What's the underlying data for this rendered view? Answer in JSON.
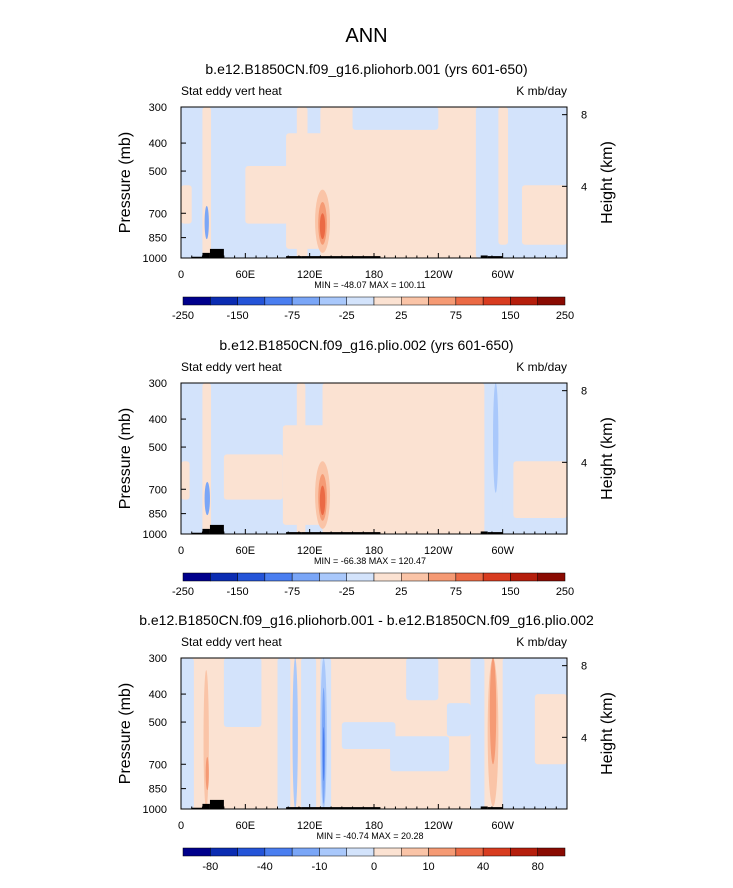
{
  "figure_title": "ANN",
  "chart_data": [
    {
      "type": "heatmap",
      "title": "b.e12.B1850CN.f09_g16.pliohorb.001 (yrs 601-650)",
      "variable_label": "Stat eddy vert heat",
      "units_label": "K mb/day",
      "ylabel": "Pressure (mb)",
      "ylabel_right": "Height (km)",
      "yticks": [
        "300",
        "400",
        "500",
        "700",
        "850",
        "1000"
      ],
      "yticks_right": [
        "8",
        "4"
      ],
      "xticks": [
        "0",
        "60E",
        "120E",
        "180",
        "120W",
        "60W"
      ],
      "stats": "MIN = -48.07   MAX = 100.11",
      "colorbar_labels": [
        "-250",
        "-150",
        "-75",
        "-25",
        "25",
        "75",
        "150",
        "250"
      ],
      "colorbar_colors": [
        "#00008c",
        "#0b2cb2",
        "#2454d8",
        "#4a7ef0",
        "#7aa6f7",
        "#a9c8fb",
        "#d3e3fb",
        "#fbe2d2",
        "#fac4a7",
        "#f59a74",
        "#eb6a45",
        "#d83c20",
        "#b51e0c",
        "#8a0b02"
      ],
      "land_bars": [
        [
          10,
          20,
          990
        ],
        [
          20,
          27,
          960
        ],
        [
          27,
          40,
          930
        ],
        [
          98,
          112,
          985
        ],
        [
          112,
          170,
          985
        ],
        [
          170,
          186,
          985
        ],
        [
          280,
          286,
          980
        ],
        [
          286,
          300,
          985
        ]
      ],
      "features": [
        {
          "kind": "bg",
          "fill": "#d3e3fb"
        },
        {
          "kind": "rect",
          "x": [
            20,
            28
          ],
          "p": [
            300,
            1000
          ],
          "fill": "#fbe2d2"
        },
        {
          "kind": "rect",
          "x": [
            60,
            100
          ],
          "p": [
            480,
            760
          ],
          "fill": "#fbe2d2"
        },
        {
          "kind": "rect",
          "x": [
            98,
            283
          ],
          "p": [
            370,
            930
          ],
          "fill": "#fbe2d2"
        },
        {
          "kind": "rect",
          "x": [
            108,
            118
          ],
          "p": [
            300,
            1000
          ],
          "fill": "#fbe2d2"
        },
        {
          "kind": "rect",
          "x": [
            130,
            283
          ],
          "p": [
            300,
            1000
          ],
          "fill": "#fbe2d2"
        },
        {
          "kind": "rect",
          "x": [
            160,
            240
          ],
          "p": [
            300,
            360
          ],
          "fill": "#d3e3fb"
        },
        {
          "kind": "rect",
          "x": [
            275,
            290
          ],
          "p": [
            300,
            1000
          ],
          "fill": "#d3e3fb"
        },
        {
          "kind": "rect",
          "x": [
            296,
            305
          ],
          "p": [
            300,
            900
          ],
          "fill": "#fbe2d2"
        },
        {
          "kind": "rect",
          "x": [
            318,
            360
          ],
          "p": [
            560,
            900
          ],
          "fill": "#fbe2d2"
        },
        {
          "kind": "rect",
          "x": [
            0,
            10
          ],
          "p": [
            560,
            760
          ],
          "fill": "#fbe2d2"
        },
        {
          "kind": "blob",
          "x": [
            22,
            26
          ],
          "p": [
            660,
            860
          ],
          "fill": "#7aa6f7"
        },
        {
          "kind": "blob",
          "x": [
            125,
            139
          ],
          "p": [
            580,
            960
          ],
          "fill": "#fac4a7"
        },
        {
          "kind": "blob",
          "x": [
            128,
            136
          ],
          "p": [
            640,
            900
          ],
          "fill": "#f59a74"
        },
        {
          "kind": "blob",
          "x": [
            129.5,
            134.5
          ],
          "p": [
            700,
            860
          ],
          "fill": "#eb6a45"
        }
      ]
    },
    {
      "type": "heatmap",
      "title": "b.e12.B1850CN.f09_g16.plio.002 (yrs 601-650)",
      "variable_label": "Stat eddy vert heat",
      "units_label": "K mb/day",
      "ylabel": "Pressure (mb)",
      "ylabel_right": "Height (km)",
      "yticks": [
        "300",
        "400",
        "500",
        "700",
        "850",
        "1000"
      ],
      "yticks_right": [
        "8",
        "4"
      ],
      "xticks": [
        "0",
        "60E",
        "120E",
        "180",
        "120W",
        "60W"
      ],
      "stats": "MIN = -66.38   MAX = 120.47",
      "colorbar_labels": [
        "-250",
        "-150",
        "-75",
        "-25",
        "25",
        "75",
        "150",
        "250"
      ],
      "colorbar_colors": [
        "#00008c",
        "#0b2cb2",
        "#2454d8",
        "#4a7ef0",
        "#7aa6f7",
        "#a9c8fb",
        "#d3e3fb",
        "#fbe2d2",
        "#fac4a7",
        "#f59a74",
        "#eb6a45",
        "#d83c20",
        "#b51e0c",
        "#8a0b02"
      ],
      "land_bars": [
        [
          10,
          20,
          990
        ],
        [
          20,
          27,
          960
        ],
        [
          27,
          40,
          930
        ],
        [
          98,
          112,
          985
        ],
        [
          112,
          170,
          985
        ],
        [
          170,
          186,
          985
        ],
        [
          280,
          286,
          980
        ],
        [
          286,
          300,
          985
        ]
      ],
      "features": [
        {
          "kind": "bg",
          "fill": "#d3e3fb"
        },
        {
          "kind": "rect",
          "x": [
            20,
            28
          ],
          "p": [
            300,
            1000
          ],
          "fill": "#fbe2d2"
        },
        {
          "kind": "rect",
          "x": [
            40,
            95
          ],
          "p": [
            530,
            760
          ],
          "fill": "#fbe2d2"
        },
        {
          "kind": "rect",
          "x": [
            95,
            283
          ],
          "p": [
            420,
            930
          ],
          "fill": "#fbe2d2"
        },
        {
          "kind": "rect",
          "x": [
            108,
            116
          ],
          "p": [
            300,
            1000
          ],
          "fill": "#fbe2d2"
        },
        {
          "kind": "rect",
          "x": [
            132,
            283
          ],
          "p": [
            300,
            1000
          ],
          "fill": "#fbe2d2"
        },
        {
          "kind": "rect",
          "x": [
            283,
            300
          ],
          "p": [
            300,
            1000
          ],
          "fill": "#d3e3fb"
        },
        {
          "kind": "rect",
          "x": [
            310,
            360
          ],
          "p": [
            560,
            880
          ],
          "fill": "#fbe2d2"
        },
        {
          "kind": "rect",
          "x": [
            0,
            8
          ],
          "p": [
            560,
            760
          ],
          "fill": "#fbe2d2"
        },
        {
          "kind": "blob",
          "x": [
            22,
            27
          ],
          "p": [
            660,
            860
          ],
          "fill": "#7aa6f7"
        },
        {
          "kind": "blob",
          "x": [
            291,
            296
          ],
          "p": [
            300,
            720
          ],
          "fill": "#a9c8fb"
        },
        {
          "kind": "blob",
          "x": [
            125,
            139
          ],
          "p": [
            560,
            960
          ],
          "fill": "#fac4a7"
        },
        {
          "kind": "blob",
          "x": [
            128,
            136
          ],
          "p": [
            620,
            900
          ],
          "fill": "#f59a74"
        },
        {
          "kind": "blob",
          "x": [
            129.5,
            134.5
          ],
          "p": [
            680,
            860
          ],
          "fill": "#eb6a45"
        }
      ]
    },
    {
      "type": "heatmap",
      "title": "b.e12.B1850CN.f09_g16.pliohorb.001 - b.e12.B1850CN.f09_g16.plio.002",
      "variable_label": "Stat eddy vert heat",
      "units_label": "K mb/day",
      "ylabel": "Pressure (mb)",
      "ylabel_right": "Height (km)",
      "yticks": [
        "300",
        "400",
        "500",
        "700",
        "850",
        "1000"
      ],
      "yticks_right": [
        "8",
        "4"
      ],
      "xticks": [
        "0",
        "60E",
        "120E",
        "180",
        "120W",
        "60W"
      ],
      "stats": "MIN = -40.74   MAX =  20.28",
      "colorbar_labels": [
        "-80",
        "-40",
        "-10",
        "0",
        "10",
        "40",
        "80"
      ],
      "colorbar_colors": [
        "#00008c",
        "#0b2cb2",
        "#2454d8",
        "#4a7ef0",
        "#7aa6f7",
        "#a9c8fb",
        "#d3e3fb",
        "#fbe2d2",
        "#fac4a7",
        "#f59a74",
        "#eb6a45",
        "#d83c20",
        "#b51e0c",
        "#8a0b02"
      ],
      "land_bars": [
        [
          10,
          20,
          990
        ],
        [
          20,
          27,
          960
        ],
        [
          27,
          40,
          930
        ],
        [
          98,
          112,
          985
        ],
        [
          112,
          170,
          985
        ],
        [
          170,
          186,
          985
        ],
        [
          280,
          286,
          980
        ],
        [
          286,
          300,
          985
        ]
      ],
      "features": [
        {
          "kind": "bg",
          "fill": "#fbe2d2"
        },
        {
          "kind": "rect",
          "x": [
            0,
            12
          ],
          "p": [
            300,
            1000
          ],
          "fill": "#d3e3fb"
        },
        {
          "kind": "rect",
          "x": [
            40,
            75
          ],
          "p": [
            300,
            520
          ],
          "fill": "#d3e3fb"
        },
        {
          "kind": "rect",
          "x": [
            90,
            102
          ],
          "p": [
            300,
            1000
          ],
          "fill": "#d3e3fb"
        },
        {
          "kind": "rect",
          "x": [
            112,
            126
          ],
          "p": [
            300,
            1000
          ],
          "fill": "#d3e3fb"
        },
        {
          "kind": "rect",
          "x": [
            130,
            140
          ],
          "p": [
            300,
            1000
          ],
          "fill": "#d3e3fb"
        },
        {
          "kind": "rect",
          "x": [
            150,
            200
          ],
          "p": [
            500,
            620
          ],
          "fill": "#d3e3fb"
        },
        {
          "kind": "rect",
          "x": [
            195,
            250
          ],
          "p": [
            560,
            740
          ],
          "fill": "#d3e3fb"
        },
        {
          "kind": "rect",
          "x": [
            210,
            240
          ],
          "p": [
            300,
            420
          ],
          "fill": "#d3e3fb"
        },
        {
          "kind": "rect",
          "x": [
            248,
            270
          ],
          "p": [
            430,
            560
          ],
          "fill": "#d3e3fb"
        },
        {
          "kind": "rect",
          "x": [
            270,
            283
          ],
          "p": [
            300,
            1000
          ],
          "fill": "#d3e3fb"
        },
        {
          "kind": "rect",
          "x": [
            300,
            360
          ],
          "p": [
            300,
            1000
          ],
          "fill": "#d3e3fb"
        },
        {
          "kind": "rect",
          "x": [
            330,
            360
          ],
          "p": [
            400,
            700
          ],
          "fill": "#fbe2d2"
        },
        {
          "kind": "blob",
          "x": [
            21,
            26
          ],
          "p": [
            330,
            1000
          ],
          "fill": "#fac4a7"
        },
        {
          "kind": "blob",
          "x": [
            23,
            26
          ],
          "p": [
            660,
            860
          ],
          "fill": "#f59a74"
        },
        {
          "kind": "blob",
          "x": [
            104,
            109
          ],
          "p": [
            300,
            1000
          ],
          "fill": "#a9c8fb"
        },
        {
          "kind": "blob",
          "x": [
            130,
            136
          ],
          "p": [
            300,
            1000
          ],
          "fill": "#a9c8fb"
        },
        {
          "kind": "blob",
          "x": [
            131.5,
            134.5
          ],
          "p": [
            380,
            960
          ],
          "fill": "#7aa6f7"
        },
        {
          "kind": "blob",
          "x": [
            132.3,
            133.8
          ],
          "p": [
            520,
            800
          ],
          "fill": "#4a7ef0"
        },
        {
          "kind": "blob",
          "x": [
            286,
            296
          ],
          "p": [
            300,
            980
          ],
          "fill": "#fac4a7"
        },
        {
          "kind": "blob",
          "x": [
            288,
            294
          ],
          "p": [
            300,
            700
          ],
          "fill": "#f59a74"
        }
      ]
    }
  ]
}
